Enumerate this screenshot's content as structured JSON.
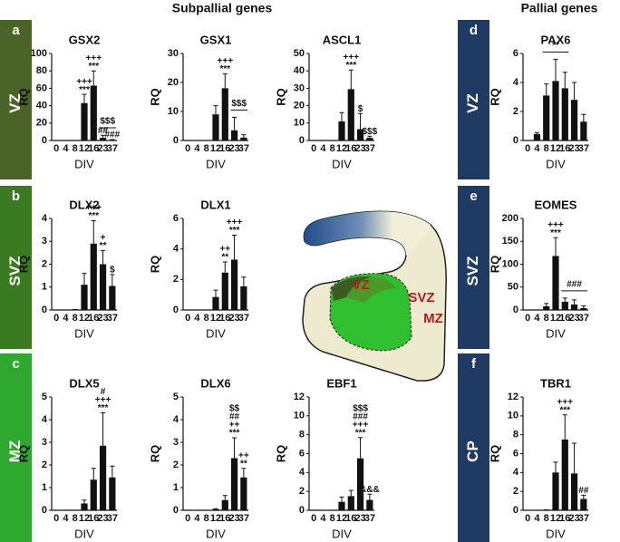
{
  "headers": [
    "Subpallial genes",
    "Pallial genes"
  ],
  "panels": [
    {
      "letter": "a",
      "region": "VZ",
      "color": "#4a6428"
    },
    {
      "letter": "b",
      "region": "SVZ",
      "color": "#3a7a20"
    },
    {
      "letter": "c",
      "region": "MZ",
      "color": "#2fa82f"
    },
    {
      "letter": "d",
      "region": "VZ",
      "color": "#1f3a63"
    },
    {
      "letter": "e",
      "region": "SVZ",
      "color": "#1f3a63"
    },
    {
      "letter": "f",
      "region": "CP",
      "color": "#1f3a63"
    }
  ],
  "diagram": {
    "labels": [
      "VZ",
      "SVZ",
      "MZ"
    ]
  },
  "chart_data": [
    {
      "type": "bar",
      "title": "GSX2",
      "x_label": "DIV",
      "y_label": "RQ",
      "color": "#111111",
      "categories": [
        "0",
        "4",
        "8",
        "12",
        "16",
        "23",
        "37"
      ],
      "values": [
        0,
        0,
        0,
        43,
        63,
        3,
        0.5
      ],
      "errors": [
        0,
        0,
        0,
        10,
        17,
        3,
        0.5
      ],
      "annotations": [
        [],
        [],
        [],
        [
          "+++",
          "***"
        ],
        [
          "+++",
          "***"
        ],
        [
          "##"
        ],
        [
          "###"
        ]
      ],
      "brackets": [
        {
          "text": "$$$",
          "from": 5,
          "to": 6
        }
      ],
      "ylim": [
        0,
        100
      ],
      "yticks": [
        0,
        20,
        40,
        60,
        80,
        100
      ]
    },
    {
      "type": "bar",
      "title": "GSX1",
      "x_label": "DIV",
      "y_label": "RQ",
      "color": "#111111",
      "categories": [
        "0",
        "4",
        "8",
        "12",
        "16",
        "23",
        "37"
      ],
      "values": [
        0,
        0,
        0,
        9,
        18,
        3.5,
        1
      ],
      "errors": [
        0,
        0,
        0,
        3,
        5,
        4.5,
        1
      ],
      "annotations": [
        [],
        [],
        [],
        [],
        [
          "+++",
          "***"
        ],
        [],
        []
      ],
      "brackets": [
        {
          "text": "$$$",
          "from": 5,
          "to": 6
        }
      ],
      "ylim": [
        0,
        30
      ],
      "yticks": [
        0,
        10,
        20,
        30
      ]
    },
    {
      "type": "bar",
      "title": "ASCL1",
      "x_label": "DIV",
      "y_label": "RQ",
      "color": "#111111",
      "categories": [
        "0",
        "4",
        "8",
        "12",
        "16",
        "23",
        "37"
      ],
      "values": [
        0,
        0,
        0,
        11,
        29.5,
        6.5,
        1.5
      ],
      "errors": [
        0,
        0,
        0,
        5,
        11,
        9,
        1
      ],
      "annotations": [
        [],
        [],
        [],
        [],
        [
          "+++",
          "***"
        ],
        [
          "$"
        ],
        [
          "$$$"
        ]
      ],
      "brackets": [],
      "ylim": [
        0,
        50
      ],
      "yticks": [
        0,
        10,
        20,
        30,
        40,
        50
      ]
    },
    {
      "type": "bar",
      "title": "PAX6",
      "x_label": "DIV",
      "y_label": "RQ",
      "color": "#111111",
      "categories": [
        "0",
        "4",
        "8",
        "12",
        "16",
        "23",
        "37"
      ],
      "values": [
        0,
        0.45,
        3.1,
        4.1,
        3.6,
        2.8,
        1.3
      ],
      "errors": [
        0,
        0.1,
        0.8,
        1.5,
        1.1,
        1.2,
        0.5
      ],
      "annotations": [
        [],
        [],
        [],
        [],
        [],
        [],
        []
      ],
      "brackets": [
        {
          "text": "**",
          "from": 2,
          "to": 4
        }
      ],
      "ylim": [
        0,
        6
      ],
      "yticks": [
        0,
        2,
        4,
        6
      ]
    },
    {
      "type": "bar",
      "title": "DLX2",
      "x_label": "DIV",
      "y_label": "RQ",
      "color": "#111111",
      "categories": [
        "0",
        "4",
        "8",
        "12",
        "16",
        "23",
        "37"
      ],
      "values": [
        0,
        0,
        0.02,
        1.1,
        2.9,
        2.0,
        1.05
      ],
      "errors": [
        0,
        0,
        0,
        0.5,
        1,
        0.6,
        0.5
      ],
      "annotations": [
        [],
        [],
        [],
        [],
        [
          "+++",
          "***"
        ],
        [
          "+",
          "**"
        ],
        [
          "$"
        ]
      ],
      "brackets": [],
      "ylim": [
        0,
        4
      ],
      "yticks": [
        0,
        1,
        2,
        3,
        4
      ]
    },
    {
      "type": "bar",
      "title": "DLX1",
      "x_label": "DIV",
      "y_label": "RQ",
      "color": "#111111",
      "categories": [
        "0",
        "4",
        "8",
        "12",
        "16",
        "23",
        "37"
      ],
      "values": [
        0,
        0,
        0,
        0.85,
        2.45,
        3.3,
        1.55
      ],
      "errors": [
        0,
        0,
        0,
        0.45,
        0.7,
        1.6,
        0.6
      ],
      "annotations": [
        [],
        [],
        [],
        [],
        [
          "++",
          "**"
        ],
        [
          "+++",
          "***"
        ],
        []
      ],
      "brackets": [],
      "ylim": [
        0,
        6
      ],
      "yticks": [
        0,
        2,
        4,
        6
      ]
    },
    {
      "type": "bar",
      "title": "EOMES",
      "x_label": "DIV",
      "y_label": "RQ",
      "color": "#111111",
      "categories": [
        "0",
        "4",
        "8",
        "12",
        "16",
        "23",
        "37"
      ],
      "values": [
        0,
        0,
        8,
        118,
        18,
        12,
        4
      ],
      "errors": [
        0,
        0,
        6,
        40,
        8,
        10,
        5
      ],
      "annotations": [
        [],
        [],
        [],
        [
          "+++",
          "***"
        ],
        [],
        [],
        []
      ],
      "brackets": [
        {
          "text": "###",
          "from": 4,
          "to": 6
        }
      ],
      "ylim": [
        0,
        200
      ],
      "yticks": [
        0,
        50,
        100,
        150,
        200
      ]
    },
    {
      "type": "bar",
      "title": "DLX5",
      "x_label": "DIV",
      "y_label": "RQ",
      "color": "#111111",
      "categories": [
        "0",
        "4",
        "8",
        "12",
        "16",
        "23",
        "37"
      ],
      "values": [
        0,
        0,
        0,
        0.3,
        1.35,
        2.85,
        1.45
      ],
      "errors": [
        0,
        0,
        0,
        0.15,
        0.5,
        1.45,
        0.5
      ],
      "annotations": [
        [],
        [],
        [],
        [],
        [],
        [
          "#",
          "+++",
          "***"
        ],
        []
      ],
      "brackets": [],
      "ylim": [
        0,
        5
      ],
      "yticks": [
        0,
        1,
        2,
        3,
        4,
        5
      ]
    },
    {
      "type": "bar",
      "title": "DLX6",
      "x_label": "DIV",
      "y_label": "RQ",
      "color": "#111111",
      "categories": [
        "0",
        "4",
        "8",
        "12",
        "16",
        "23",
        "37"
      ],
      "values": [
        0,
        0,
        0,
        0.05,
        0.45,
        2.3,
        1.45
      ],
      "errors": [
        0,
        0,
        0,
        0.02,
        0.2,
        0.9,
        0.4
      ],
      "annotations": [
        [],
        [],
        [],
        [],
        [],
        [
          "$$",
          "##",
          "++",
          "***"
        ],
        [
          "++",
          "**"
        ]
      ],
      "brackets": [],
      "ylim": [
        0,
        5
      ],
      "yticks": [
        0,
        1,
        2,
        3,
        4,
        5
      ]
    },
    {
      "type": "bar",
      "title": "EBF1",
      "x_label": "DIV",
      "y_label": "RQ",
      "color": "#111111",
      "categories": [
        "0",
        "4",
        "8",
        "12",
        "16",
        "23",
        "37"
      ],
      "values": [
        0,
        0,
        0,
        0.9,
        1.5,
        5.5,
        1.1
      ],
      "errors": [
        0,
        0,
        0,
        0.5,
        0.6,
        2.2,
        0.6
      ],
      "annotations": [
        [],
        [],
        [],
        [],
        [],
        [
          "$$$",
          "###",
          "+++",
          "***"
        ],
        [
          "&&&"
        ]
      ],
      "brackets": [],
      "ylim": [
        0,
        12
      ],
      "yticks": [
        0,
        2,
        4,
        6,
        8,
        10,
        12
      ]
    },
    {
      "type": "bar",
      "title": "TBR1",
      "x_label": "DIV",
      "y_label": "RQ",
      "color": "#111111",
      "categories": [
        "0",
        "4",
        "8",
        "12",
        "16",
        "23",
        "37"
      ],
      "values": [
        0,
        0,
        0.05,
        4,
        7.5,
        3.9,
        1.2
      ],
      "errors": [
        0,
        0,
        0,
        1.1,
        2.6,
        3.2,
        0.4
      ],
      "annotations": [
        [],
        [],
        [],
        [],
        [
          "+++",
          "***"
        ],
        [],
        [
          "##"
        ]
      ],
      "brackets": [],
      "ylim": [
        0,
        12
      ],
      "yticks": [
        0,
        2,
        4,
        6,
        8,
        10,
        12
      ]
    }
  ]
}
